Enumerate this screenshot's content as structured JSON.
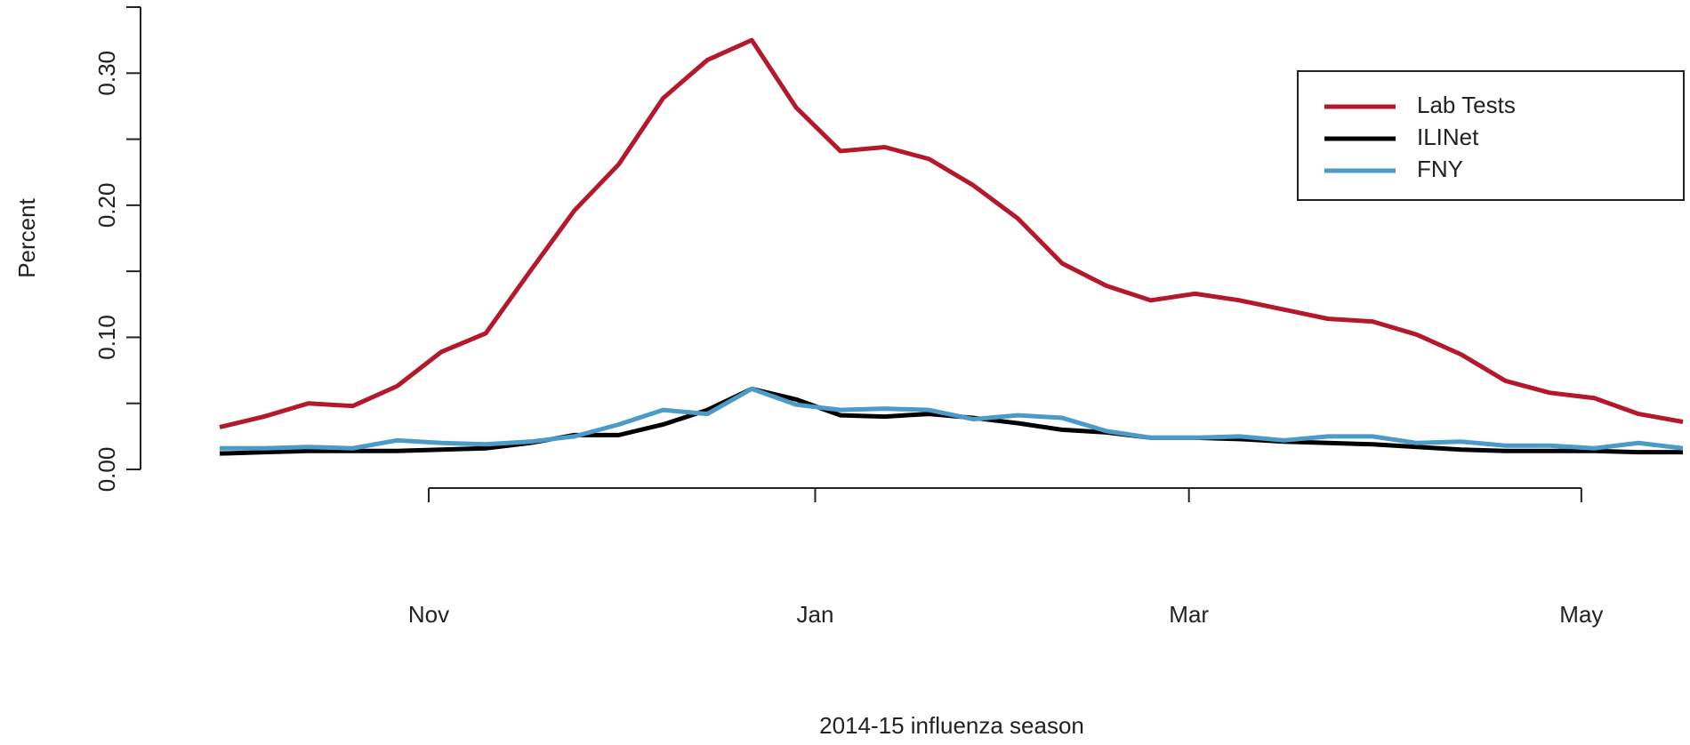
{
  "chart_data": {
    "type": "line",
    "xlabel": "2014-15 influenza season",
    "ylabel": "Percent",
    "x": [
      0,
      1,
      2,
      3,
      4,
      5,
      6,
      7,
      8,
      9,
      10,
      11,
      12,
      13,
      14,
      15,
      16,
      17,
      18,
      19,
      20,
      21,
      22,
      23,
      24,
      25,
      26,
      27,
      28,
      29,
      30,
      31,
      32,
      33
    ],
    "xlim": [
      0,
      33
    ],
    "xticks": [
      {
        "value": 4.714,
        "label": "Nov"
      },
      {
        "value": 13.43,
        "label": "Jan"
      },
      {
        "value": 21.86,
        "label": "Mar"
      },
      {
        "value": 30.71,
        "label": "May"
      }
    ],
    "ylim": [
      0,
      0.35
    ],
    "yticks": [
      {
        "value": 0,
        "label": "0.00"
      },
      {
        "value": 0.1,
        "label": "0.10"
      },
      {
        "value": 0.2,
        "label": "0.20"
      },
      {
        "value": 0.3,
        "label": "0.30"
      }
    ],
    "yminor_ticks": [
      0.05,
      0.15,
      0.25
    ],
    "legend": "top-right",
    "series": [
      {
        "name": "Lab Tests",
        "color": "#b5182b",
        "values": [
          0.032,
          0.04,
          0.05,
          0.048,
          0.063,
          0.089,
          0.103,
          0.15,
          0.196,
          0.231,
          0.281,
          0.31,
          0.325,
          0.274,
          0.241,
          0.244,
          0.235,
          0.215,
          0.19,
          0.156,
          0.139,
          0.128,
          0.133,
          0.128,
          0.121,
          0.114,
          0.112,
          0.102,
          0.087,
          0.067,
          0.058,
          0.054,
          0.042,
          0.036
        ]
      },
      {
        "name": "ILINet",
        "color": "#000000",
        "values": [
          0.012,
          0.013,
          0.014,
          0.014,
          0.014,
          0.015,
          0.016,
          0.02,
          0.026,
          0.026,
          0.034,
          0.045,
          0.061,
          0.053,
          0.041,
          0.04,
          0.042,
          0.039,
          0.035,
          0.03,
          0.028,
          0.024,
          0.024,
          0.023,
          0.021,
          0.02,
          0.019,
          0.017,
          0.015,
          0.014,
          0.014,
          0.014,
          0.013,
          0.013
        ]
      },
      {
        "name": "FNY",
        "color": "#4a9bc7",
        "values": [
          0.016,
          0.016,
          0.017,
          0.016,
          0.022,
          0.02,
          0.019,
          0.021,
          0.025,
          0.034,
          0.045,
          0.042,
          0.061,
          0.049,
          0.045,
          0.046,
          0.045,
          0.038,
          0.041,
          0.039,
          0.029,
          0.024,
          0.024,
          0.025,
          0.022,
          0.025,
          0.025,
          0.02,
          0.021,
          0.018,
          0.018,
          0.016,
          0.02,
          0.016
        ]
      }
    ]
  }
}
